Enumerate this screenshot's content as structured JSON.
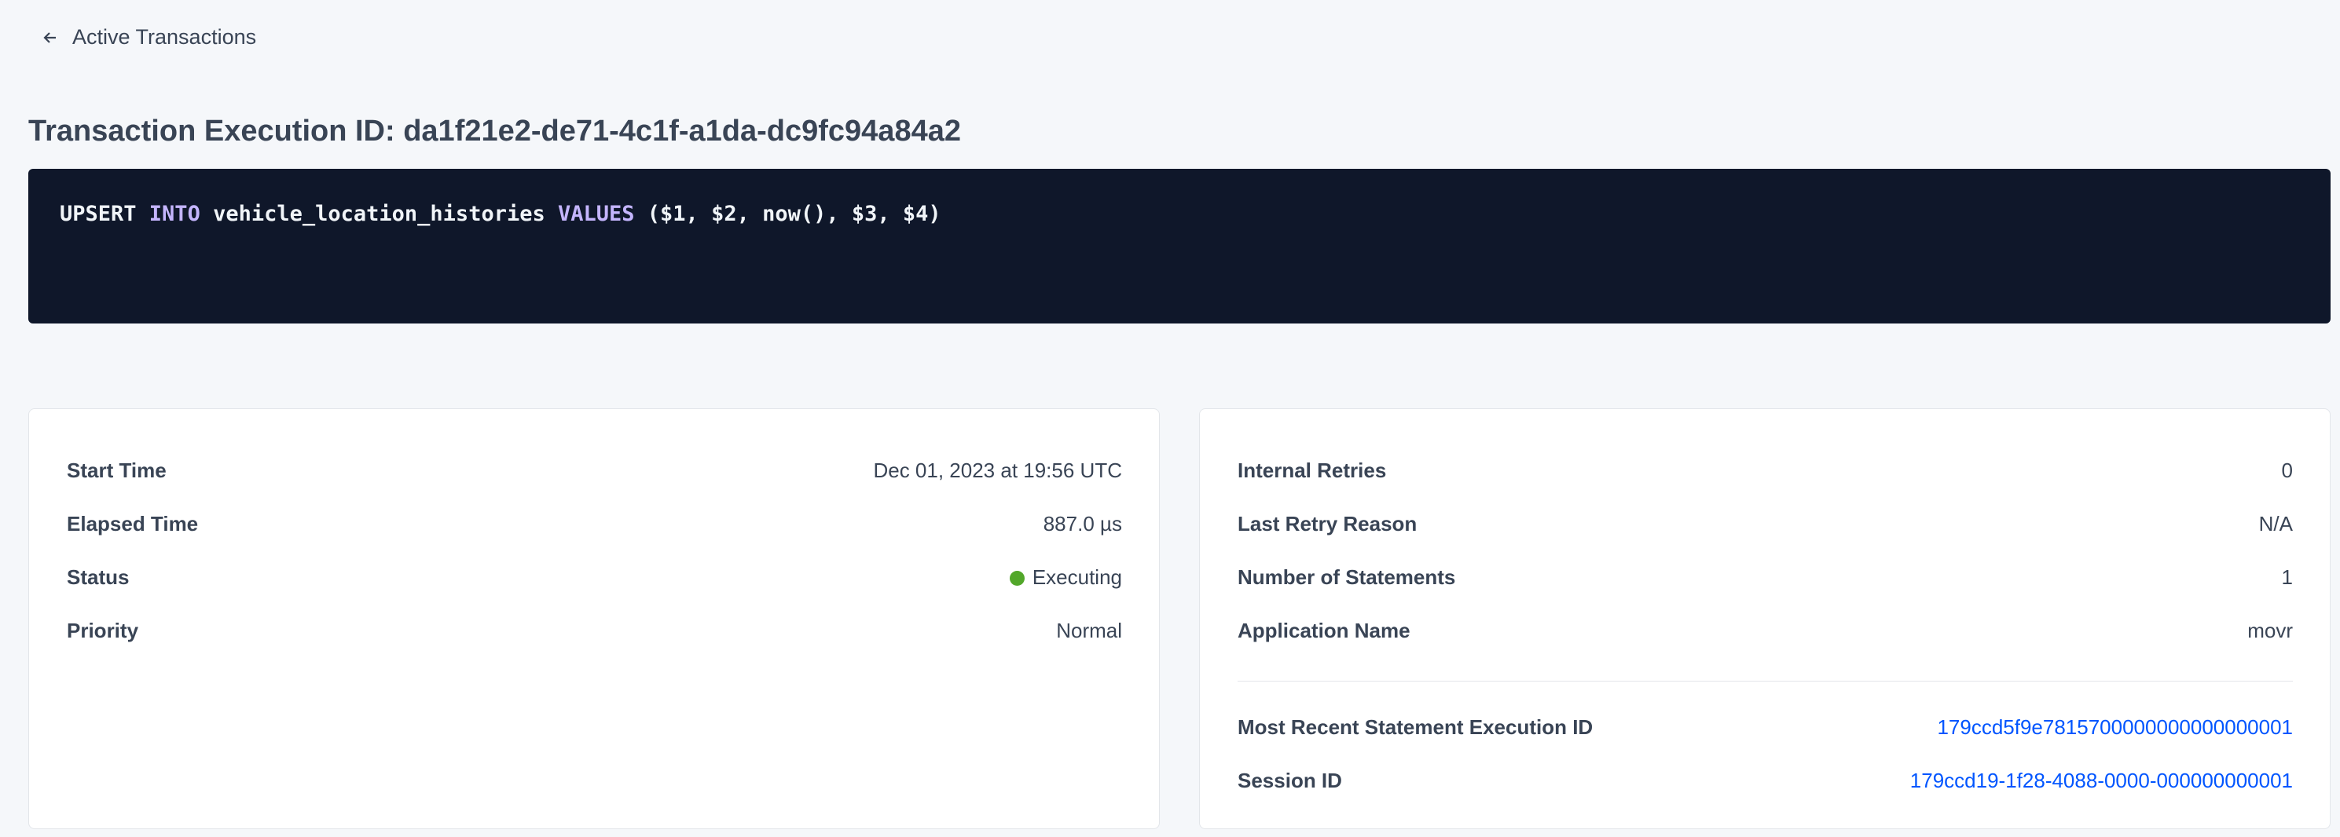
{
  "nav": {
    "back_label": "Active Transactions",
    "back_icon": "arrow-left-icon"
  },
  "header": {
    "title": "Transaction Execution ID: da1f21e2-de71-4c1f-a1da-dc9fc94a84a2"
  },
  "sql": {
    "tokens": [
      {
        "text": "UPSERT ",
        "kw": false
      },
      {
        "text": "INTO",
        "kw": true
      },
      {
        "text": " vehicle_location_histories ",
        "kw": false
      },
      {
        "text": "VALUES",
        "kw": true
      },
      {
        "text": " ($1, $2, now(), $3, $4)",
        "kw": false
      }
    ]
  },
  "left_card": {
    "rows": [
      {
        "label": "Start Time",
        "value": "Dec 01, 2023 at 19:56 UTC"
      },
      {
        "label": "Elapsed Time",
        "value": "887.0 µs"
      },
      {
        "label": "Status",
        "value": "Executing",
        "status_color": "#52a72a"
      },
      {
        "label": "Priority",
        "value": "Normal"
      }
    ]
  },
  "right_card": {
    "rows": [
      {
        "label": "Internal Retries",
        "value": "0"
      },
      {
        "label": "Last Retry Reason",
        "value": "N/A"
      },
      {
        "label": "Number of Statements",
        "value": "1"
      },
      {
        "label": "Application Name",
        "value": "movr"
      }
    ],
    "links": [
      {
        "label": "Most Recent Statement Execution ID",
        "value": "179ccd5f9e7815700000000000000001"
      },
      {
        "label": "Session ID",
        "value": "179ccd19-1f28-4088-0000-000000000001"
      }
    ]
  },
  "colors": {
    "link": "#0055ff",
    "code_bg": "#0f172a",
    "keyword": "#c4b5fd",
    "executing": "#52a72a"
  }
}
